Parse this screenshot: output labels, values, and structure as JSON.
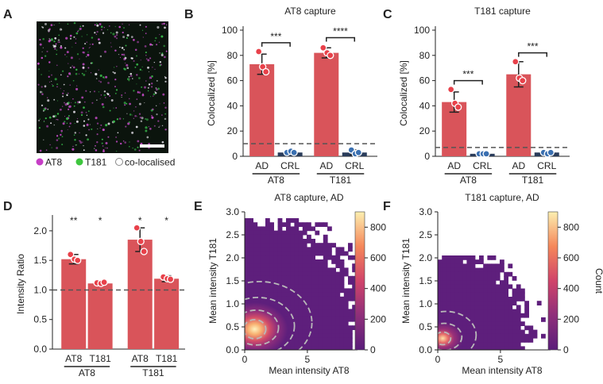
{
  "colors": {
    "bar": "#d9545a",
    "ad_point": "#e8414a",
    "crl_point": "#3a6fb0",
    "dark_bar": "#2a3c5a",
    "at8_dot": "#c63ec6",
    "t181_dot": "#3ec63e",
    "ref_line": "#555555"
  },
  "panels": {
    "A": {
      "letter": "A",
      "legend": [
        {
          "label": "AT8",
          "color": "#c63ec6"
        },
        {
          "label": "T181",
          "color": "#3ec63e"
        },
        {
          "label": "co-localised",
          "color": "#ffffff"
        }
      ]
    },
    "B": {
      "letter": "B"
    },
    "C": {
      "letter": "C"
    },
    "D": {
      "letter": "D"
    },
    "E": {
      "letter": "E"
    },
    "F": {
      "letter": "F"
    }
  },
  "chart_data": [
    {
      "panel": "B",
      "type": "bar",
      "title": "AT8 capture",
      "ylabel": "Colocalized [%]",
      "ylim": [
        0,
        100
      ],
      "yticks": [
        0,
        20,
        40,
        60,
        80,
        100
      ],
      "categories": [
        "AD",
        "CRL",
        "AD",
        "CRL"
      ],
      "groups": [
        "AT8",
        "T181"
      ],
      "values": [
        73,
        3,
        82,
        3
      ],
      "points": [
        [
          83,
          71,
          67
        ],
        [
          3,
          4,
          3
        ],
        [
          86,
          82,
          80
        ],
        [
          5,
          2,
          3
        ]
      ],
      "errors": [
        8,
        1,
        4,
        2
      ],
      "reference_line": 10,
      "significance": [
        "***",
        "****"
      ]
    },
    {
      "panel": "C",
      "type": "bar",
      "title": "T181 capture",
      "ylabel": "Colocalized [%]",
      "ylim": [
        0,
        100
      ],
      "yticks": [
        0,
        20,
        40,
        60,
        80,
        100
      ],
      "categories": [
        "AD",
        "CRL",
        "AD",
        "CRL"
      ],
      "groups": [
        "AT8",
        "T181"
      ],
      "values": [
        43,
        2,
        65,
        3
      ],
      "points": [
        [
          53,
          42,
          39
        ],
        [
          2,
          2,
          2
        ],
        [
          75,
          62,
          60
        ],
        [
          3,
          2,
          3
        ]
      ],
      "errors": [
        8,
        1,
        10,
        1
      ],
      "reference_line": 7,
      "significance": [
        "***",
        "***"
      ]
    },
    {
      "panel": "D",
      "type": "bar",
      "title": "",
      "ylabel": "Intensity Ratio",
      "ylim": [
        0,
        2.2
      ],
      "yticks": [
        0.0,
        0.5,
        1.0,
        1.5,
        2.0
      ],
      "categories": [
        "AT8",
        "T181",
        "AT8",
        "T181"
      ],
      "groups": [
        "AT8",
        "T181"
      ],
      "values": [
        1.52,
        1.11,
        1.85,
        1.19
      ],
      "points": [
        [
          1.6,
          1.52,
          1.5
        ],
        [
          1.12,
          1.11,
          1.13
        ],
        [
          2.05,
          1.82,
          1.65
        ],
        [
          1.22,
          1.19,
          1.18
        ]
      ],
      "errors": [
        0.08,
        0.03,
        0.2,
        0.05
      ],
      "reference_line": 1.0,
      "significance": [
        "**",
        "*",
        "*",
        "*"
      ]
    },
    {
      "panel": "E",
      "type": "heatmap",
      "title": "AT8 capture, AD",
      "xlabel": "Mean intensity AT8",
      "ylabel": "Mean intensity T181",
      "xlim": [
        0,
        9
      ],
      "ylim": [
        0,
        3.0
      ],
      "xticks": [
        0,
        5
      ],
      "yticks": [
        0.0,
        0.5,
        1.0,
        1.5,
        2.0,
        2.5,
        3.0
      ],
      "colorbar": {
        "label": "Count",
        "range": [
          0,
          900
        ],
        "ticks": [
          0,
          200,
          400,
          600,
          800
        ]
      },
      "peak": [
        0.8,
        0.45
      ]
    },
    {
      "panel": "F",
      "type": "heatmap",
      "title": "T181 capture, AD",
      "xlabel": "Mean intensity AT8",
      "ylabel": "Mean intensity T181",
      "xlim": [
        0,
        9
      ],
      "ylim": [
        0,
        3.0
      ],
      "xticks": [
        0,
        5
      ],
      "yticks": [
        0.0,
        0.5,
        1.0,
        1.5,
        2.0,
        2.5,
        3.0
      ],
      "colorbar": {
        "label": "Count",
        "range": [
          0,
          900
        ],
        "ticks": [
          0,
          200,
          400,
          600,
          800
        ]
      },
      "peak": [
        0.4,
        0.25
      ]
    }
  ]
}
